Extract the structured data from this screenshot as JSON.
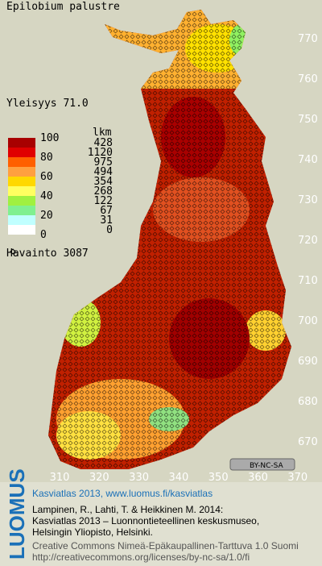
{
  "header": {
    "title": "Epilobium palustre",
    "frequency": "Yleisyys  71.0"
  },
  "legend": {
    "scale_labels": [
      "100",
      "80",
      "60",
      "40",
      "20",
      "0"
    ],
    "unit": "lkm",
    "counts": [
      "428",
      "1120",
      "975",
      "494",
      "354",
      "268",
      "122",
      "67",
      "31",
      "0"
    ],
    "colors": [
      "#a80000",
      "#e00000",
      "#ff6000",
      "#ffa040",
      "#ffd800",
      "#ffff60",
      "#a0f040",
      "#80f090",
      "#c0ffff",
      "#ffffff"
    ],
    "observations": "Havainto 3087"
  },
  "map": {
    "y_labels": [
      "770",
      "760",
      "750",
      "740",
      "730",
      "720",
      "710",
      "700",
      "690",
      "680",
      "670"
    ],
    "x_labels": [
      "310",
      "320",
      "330",
      "340",
      "350",
      "360",
      "370"
    ],
    "license_badge": "BY-NC-SA"
  },
  "footer": {
    "logo": "LUOMUS",
    "link": "Kasviatlas 2013, www.luomus.fi/kasviatlas",
    "citation": [
      "Lampinen, R., Lahti, T. & Heikkinen M. 2014:",
      "Kasviatlas 2013 – Luonnontieteellinen keskusmuseo,",
      "Helsingin Yliopisto, Helsinki."
    ],
    "license": [
      "Creative Commons Nimeä-Epäkaupallinen-Tarttuva 1.0 Suomi",
      "http://creativecommons.org/licenses/by-nc-sa/1.0/fi"
    ]
  }
}
